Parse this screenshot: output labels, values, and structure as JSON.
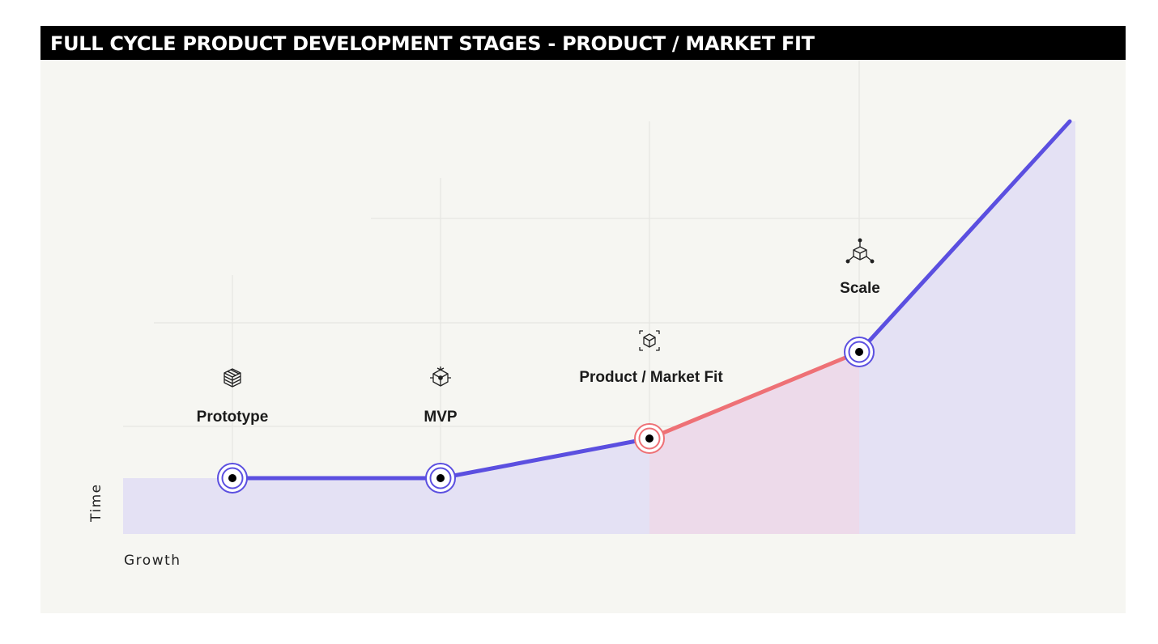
{
  "title": "FULL CYCLE PRODUCT DEVELOPMENT STAGES - PRODUCT / MARKET FIT",
  "axes": {
    "x_label": "Growth",
    "y_label": "Time"
  },
  "colors": {
    "title_background": "#000000",
    "panel_background": "#f6f6f2",
    "line_primary": "#5b4fe0",
    "line_highlight": "#ee7176",
    "area_primary": "#e4e1f4",
    "area_highlight": "#eddaea",
    "grid": "#e3e3df"
  },
  "stages": [
    {
      "key": "prototype",
      "label": "Prototype",
      "icon": "layered-cube-icon",
      "highlight": false
    },
    {
      "key": "mvp",
      "label": "MVP",
      "icon": "wireframe-cube-icon",
      "highlight": false
    },
    {
      "key": "pmf",
      "label": "Product / Market Fit",
      "icon": "framed-cube-icon",
      "highlight": true
    },
    {
      "key": "scale",
      "label": "Scale",
      "icon": "network-cube-icon",
      "highlight": false
    }
  ],
  "highlighted_segment": "Product / Market Fit to Scale"
}
